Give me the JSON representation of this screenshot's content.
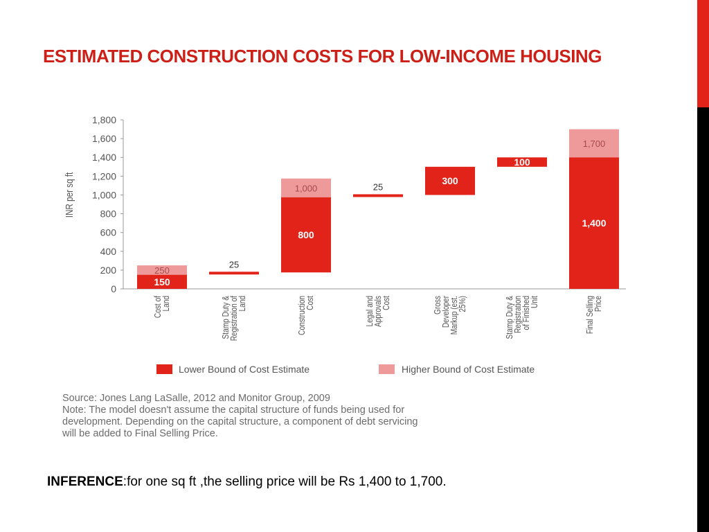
{
  "slide": {
    "title": "ESTIMATED CONSTRUCTION COSTS FOR LOW-INCOME HOUSING",
    "colors": {
      "accent": "#e2231a",
      "title": "#cc1f17",
      "lower_bar": "#e2231a",
      "higher_bar": "#ee9a9a"
    }
  },
  "chart_data": {
    "type": "bar",
    "subtype": "waterfall",
    "ylabel": "INR per sq ft",
    "ylim": [
      0,
      1800
    ],
    "yticks": [
      0,
      200,
      400,
      600,
      800,
      1000,
      1200,
      1400,
      1600,
      1800
    ],
    "ytick_labels": [
      "0",
      "200",
      "400",
      "600",
      "800",
      "1,000",
      "1,200",
      "1,400",
      "1,600",
      "1,800"
    ],
    "grid": false,
    "legend_position": "bottom",
    "categories": [
      {
        "lines": [
          "Cost of",
          "Land"
        ],
        "lower_base": 0,
        "lower_top": 150,
        "higher_top": 250,
        "lower_label": "150",
        "higher_label": "250"
      },
      {
        "lines": [
          "Stamp Duty &",
          "Registration of",
          "Land"
        ],
        "lower_base": 150,
        "lower_top": 175,
        "higher_top": null,
        "lower_label": "",
        "higher_label": "25"
      },
      {
        "lines": [
          "Construction",
          "Cost"
        ],
        "lower_base": 175,
        "lower_top": 975,
        "higher_top": 1175,
        "lower_label": "800",
        "higher_label": "1,000"
      },
      {
        "lines": [
          "Legal and",
          "Approvals",
          "Cost"
        ],
        "lower_base": 975,
        "lower_top": 1000,
        "higher_top": null,
        "lower_label": "",
        "higher_label": "25"
      },
      {
        "lines": [
          "Gross",
          "Developer",
          "Markup (est.",
          "25%)"
        ],
        "lower_base": 1000,
        "lower_top": 1300,
        "higher_top": null,
        "lower_label": "300",
        "higher_label": ""
      },
      {
        "lines": [
          "Stamp Duty &",
          "Registration",
          "of Finished",
          "Unit"
        ],
        "lower_base": 1300,
        "lower_top": 1400,
        "higher_top": null,
        "lower_label": "100",
        "higher_label": ""
      },
      {
        "lines": [
          "Final Selling",
          "Price"
        ],
        "lower_base": 0,
        "lower_top": 1400,
        "higher_top": 1700,
        "lower_label": "1,400",
        "higher_label": "1,700"
      }
    ],
    "legend": [
      {
        "label": "Lower Bound of Cost Estimate",
        "color": "#e2231a"
      },
      {
        "label": "Higher Bound of Cost Estimate",
        "color": "#ee9a9a"
      }
    ]
  },
  "source": {
    "line1": "Source: Jones Lang LaSalle, 2012 and Monitor Group, 2009",
    "line2": "Note: The model doesn't assume the capital structure of funds being used for",
    "line3": "development. Depending on the capital structure, a component of debt servicing",
    "line4": "will be added to Final Selling Price."
  },
  "inference": {
    "label": "INFERENCE",
    "text": ":for one sq ft ,the selling price will be Rs 1,400 to 1,700."
  }
}
